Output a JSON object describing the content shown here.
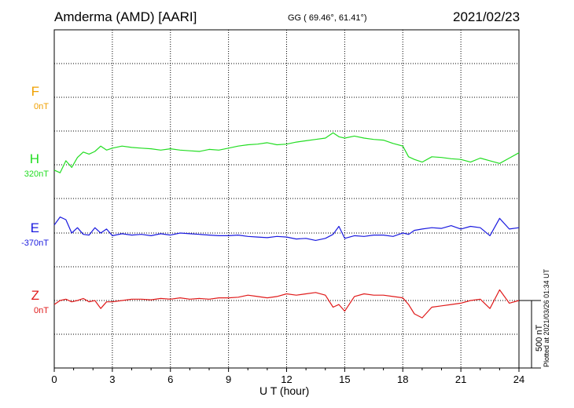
{
  "header": {
    "station": "Amderma (AMD)  [AARI]",
    "coords": "GG ( 69.46°,  61.41°)",
    "date": "2021/02/23"
  },
  "components": [
    {
      "name": "F",
      "baseline": "0nT",
      "color": "#f0a000"
    },
    {
      "name": "H",
      "baseline": "320nT",
      "color": "#22dd22"
    },
    {
      "name": "E",
      "baseline": "-370nT",
      "color": "#1a1adf"
    },
    {
      "name": "Z",
      "baseline": "0nT",
      "color": "#e01a1a"
    }
  ],
  "scale_label": "500 nT",
  "plotted_note": "Plotted at 2021/03/26 01:34 UT",
  "chart_data": {
    "type": "line",
    "xlabel": "U T (hour)",
    "xlim": [
      0,
      24
    ],
    "x_ticks": [
      "0",
      "3",
      "6",
      "9",
      "12",
      "15",
      "18",
      "21",
      "24"
    ],
    "y_unit": "nT",
    "scale_bar_nT": 500,
    "series": [
      {
        "name": "H",
        "color": "#22dd22",
        "baseline_nT": 320,
        "x": [
          0,
          0.3,
          0.6,
          0.9,
          1.2,
          1.5,
          1.8,
          2.1,
          2.4,
          2.7,
          3,
          3.5,
          4,
          4.5,
          5,
          5.5,
          6,
          6.5,
          7,
          7.5,
          8,
          8.5,
          9,
          9.5,
          10,
          10.5,
          11,
          11.5,
          12,
          12.5,
          13,
          13.5,
          14,
          14.4,
          14.7,
          15,
          15.5,
          16,
          16.5,
          17,
          17.5,
          18,
          18.3,
          18.6,
          19,
          19.5,
          20,
          20.5,
          21,
          21.5,
          22,
          22.5,
          23,
          23.5,
          24
        ],
        "y": [
          -40,
          -60,
          30,
          -20,
          55,
          95,
          80,
          100,
          140,
          110,
          125,
          140,
          130,
          125,
          120,
          110,
          120,
          110,
          105,
          100,
          115,
          110,
          125,
          140,
          150,
          155,
          165,
          150,
          155,
          170,
          180,
          190,
          200,
          240,
          210,
          200,
          215,
          200,
          190,
          185,
          160,
          140,
          60,
          40,
          20,
          60,
          55,
          45,
          40,
          20,
          50,
          30,
          10,
          50,
          90
        ]
      },
      {
        "name": "E",
        "color": "#1a1adf",
        "baseline_nT": -370,
        "x": [
          0,
          0.3,
          0.6,
          0.9,
          1.2,
          1.5,
          1.8,
          2.1,
          2.4,
          2.7,
          3,
          3.5,
          4,
          4.5,
          5,
          5.5,
          6,
          6.5,
          7,
          7.5,
          8,
          8.5,
          9,
          9.5,
          10,
          10.5,
          11,
          11.5,
          12,
          12.5,
          13,
          13.5,
          14,
          14.4,
          14.7,
          15,
          15.5,
          16,
          16.5,
          17,
          17.5,
          18,
          18.3,
          18.6,
          19,
          19.5,
          20,
          20.5,
          21,
          21.5,
          22,
          22.5,
          23,
          23.5,
          24
        ],
        "y": [
          60,
          120,
          100,
          0,
          40,
          -10,
          -15,
          40,
          0,
          30,
          -20,
          -5,
          -15,
          -10,
          -20,
          -5,
          -15,
          0,
          -5,
          -10,
          -15,
          -20,
          -20,
          -15,
          -25,
          -30,
          -35,
          -25,
          -30,
          -45,
          -40,
          -55,
          -40,
          -10,
          50,
          -40,
          -20,
          -25,
          -15,
          -15,
          -25,
          0,
          -10,
          20,
          30,
          40,
          35,
          55,
          30,
          50,
          40,
          -20,
          110,
          30,
          40
        ]
      },
      {
        "name": "Z",
        "color": "#e01a1a",
        "baseline_nT": 0,
        "x": [
          0,
          0.3,
          0.6,
          0.9,
          1.2,
          1.5,
          1.8,
          2.1,
          2.4,
          2.7,
          3,
          3.5,
          4,
          4.5,
          5,
          5.5,
          6,
          6.5,
          7,
          7.5,
          8,
          8.5,
          9,
          9.5,
          10,
          10.5,
          11,
          11.5,
          12,
          12.5,
          13,
          13.5,
          14,
          14.4,
          14.7,
          15,
          15.5,
          16,
          16.5,
          17,
          17.5,
          18,
          18.3,
          18.6,
          19,
          19.5,
          20,
          20.5,
          21,
          21.5,
          22,
          22.5,
          23,
          23.5,
          24
        ],
        "y": [
          -30,
          0,
          10,
          -10,
          0,
          15,
          -10,
          0,
          -60,
          -10,
          -10,
          0,
          10,
          10,
          5,
          15,
          10,
          20,
          10,
          15,
          10,
          20,
          20,
          25,
          40,
          30,
          20,
          30,
          50,
          40,
          50,
          60,
          40,
          -50,
          -30,
          -80,
          30,
          50,
          40,
          40,
          30,
          20,
          -30,
          -100,
          -130,
          -50,
          -40,
          -30,
          -20,
          0,
          10,
          -60,
          80,
          -20,
          0
        ]
      }
    ]
  }
}
